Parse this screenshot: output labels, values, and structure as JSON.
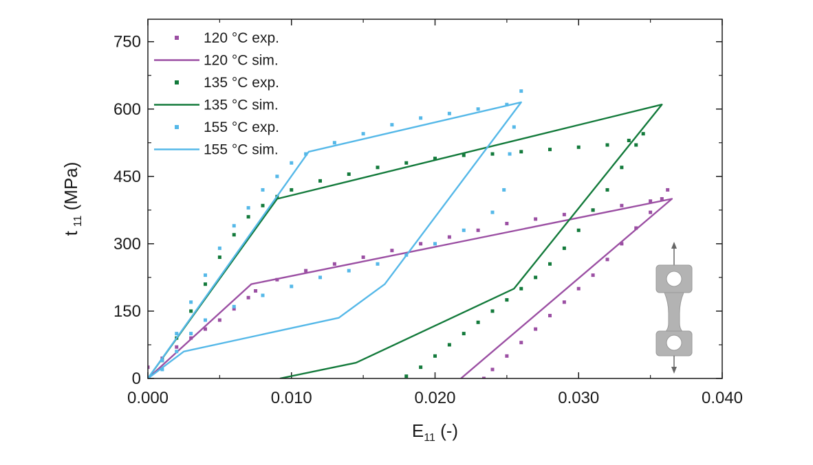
{
  "chart_data": {
    "type": "line",
    "title": "",
    "xlabel_main": "E",
    "xlabel_sub": "11",
    "xlabel_unit": " (-)",
    "ylabel_main": "t",
    "ylabel_sub": "11",
    "ylabel_unit": " (MPa)",
    "xlim": [
      0.0,
      0.04
    ],
    "ylim": [
      0,
      800
    ],
    "xticks": [
      0.0,
      0.01,
      0.02,
      0.03,
      0.04
    ],
    "xtick_labels": [
      "0.000",
      "0.010",
      "0.020",
      "0.030",
      "0.040"
    ],
    "yticks": [
      0,
      150,
      300,
      450,
      600,
      750
    ],
    "ytick_labels": [
      "0",
      "150",
      "300",
      "450",
      "600",
      "750"
    ],
    "legend_position": "top-left",
    "series": [
      {
        "name": "120 °C exp.",
        "style": "markers",
        "color": "#9b4fa3",
        "x": [
          0.0,
          0.001,
          0.002,
          0.003,
          0.004,
          0.005,
          0.006,
          0.007,
          0.0075,
          0.009,
          0.011,
          0.013,
          0.015,
          0.017,
          0.019,
          0.021,
          0.023,
          0.025,
          0.027,
          0.029,
          0.031,
          0.033,
          0.035,
          0.0362,
          0.0358,
          0.035,
          0.034,
          0.033,
          0.032,
          0.031,
          0.03,
          0.029,
          0.028,
          0.027,
          0.026,
          0.025,
          0.024,
          0.0234
        ],
        "y": [
          25,
          45,
          70,
          90,
          110,
          130,
          155,
          180,
          195,
          220,
          240,
          255,
          270,
          285,
          300,
          315,
          330,
          345,
          355,
          365,
          375,
          385,
          395,
          420,
          400,
          370,
          335,
          300,
          265,
          230,
          200,
          170,
          140,
          110,
          80,
          50,
          20,
          0
        ]
      },
      {
        "name": "120 °C sim.",
        "style": "line",
        "color": "#9b4fa3",
        "x": [
          0.0,
          0.0072,
          0.0365,
          0.0218
        ],
        "y": [
          0,
          210,
          400,
          0
        ]
      },
      {
        "name": "135 °C exp.",
        "style": "markers",
        "color": "#137a3b",
        "x": [
          0.0,
          0.001,
          0.002,
          0.003,
          0.004,
          0.005,
          0.006,
          0.007,
          0.008,
          0.009,
          0.01,
          0.012,
          0.014,
          0.016,
          0.018,
          0.02,
          0.022,
          0.024,
          0.026,
          0.028,
          0.03,
          0.032,
          0.0335,
          0.0345,
          0.034,
          0.033,
          0.032,
          0.031,
          0.03,
          0.029,
          0.028,
          0.027,
          0.026,
          0.025,
          0.024,
          0.023,
          0.022,
          0.021,
          0.02,
          0.019,
          0.018
        ],
        "y": [
          0,
          40,
          90,
          150,
          210,
          270,
          320,
          360,
          385,
          405,
          420,
          440,
          455,
          470,
          480,
          490,
          497,
          500,
          505,
          510,
          515,
          520,
          530,
          545,
          520,
          470,
          420,
          375,
          330,
          290,
          255,
          225,
          200,
          175,
          150,
          125,
          100,
          75,
          50,
          25,
          5
        ]
      },
      {
        "name": "135 °C sim.",
        "style": "line",
        "color": "#137a3b",
        "x": [
          0.0,
          0.009,
          0.0358,
          0.0255,
          0.0145,
          0.0092
        ],
        "y": [
          0,
          400,
          610,
          200,
          35,
          0
        ]
      },
      {
        "name": "155 °C exp.",
        "style": "markers",
        "color": "#55b8e8",
        "x": [
          0.0,
          0.001,
          0.002,
          0.003,
          0.004,
          0.005,
          0.006,
          0.007,
          0.008,
          0.009,
          0.01,
          0.011,
          0.013,
          0.015,
          0.017,
          0.019,
          0.021,
          0.023,
          0.025,
          0.026,
          0.0255,
          0.0252,
          0.0248,
          0.024,
          0.022,
          0.02,
          0.018,
          0.016,
          0.014,
          0.012,
          0.01,
          0.008,
          0.006,
          0.004,
          0.003,
          0.002,
          0.001
        ],
        "y": [
          0,
          40,
          100,
          170,
          230,
          290,
          340,
          380,
          420,
          450,
          480,
          500,
          525,
          545,
          565,
          580,
          590,
          600,
          610,
          640,
          560,
          500,
          420,
          370,
          330,
          300,
          275,
          255,
          240,
          225,
          205,
          185,
          160,
          130,
          100,
          60,
          20
        ]
      },
      {
        "name": "155 °C sim.",
        "style": "line",
        "color": "#55b8e8",
        "x": [
          0.0,
          0.0112,
          0.026,
          0.0165,
          0.0133,
          0.0025,
          0.0
        ],
        "y": [
          0,
          505,
          615,
          210,
          135,
          60,
          0
        ]
      }
    ],
    "annotations": [
      {
        "type": "specimen-image",
        "description": "dog-bone tensile specimen with arrows"
      }
    ]
  }
}
